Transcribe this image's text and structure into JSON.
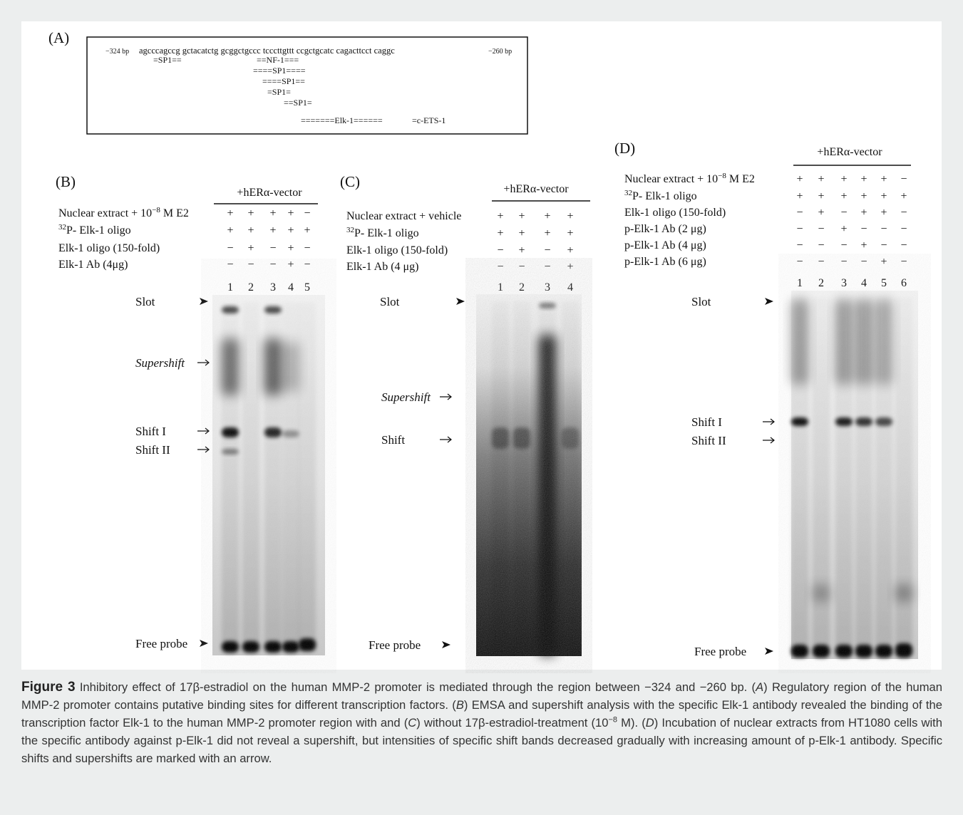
{
  "panels": {
    "a": {
      "label": "(A)",
      "sequence_start": "−324 bp",
      "sequence": "agcccagccg gctacatctg gcggctgccc tcccttgttt ccgctgcatc cagacttcct caggc",
      "sequence_end": "−260 bp",
      "sites": [
        "=SP1==",
        "==NF-1===",
        "====SP1====",
        "====SP1==",
        "=SP1=",
        "==SP1=",
        "=======Elk-1======",
        "=c-ETS-1"
      ]
    },
    "b": {
      "label": "(B)",
      "header": "+hERα-vector",
      "rows": [
        {
          "label": [
            "Nuclear extract + 10",
            [
              "−8"
            ],
            " M E2"
          ],
          "signs": [
            "+",
            "+",
            "+",
            "+",
            "−"
          ]
        },
        {
          "label": [
            [
              "32"
            ],
            "P- Elk-1 oligo"
          ],
          "signs": [
            "+",
            "+",
            "+",
            "+",
            "+"
          ]
        },
        {
          "label": [
            "Elk-1 oligo (150-fold)"
          ],
          "signs": [
            "−",
            "+",
            "−",
            "+",
            "−"
          ]
        },
        {
          "label": [
            "Elk-1 Ab (4μg)"
          ],
          "signs": [
            "−",
            "−",
            "−",
            "+",
            "−"
          ]
        }
      ],
      "lanes": [
        1,
        2,
        3,
        4,
        5
      ],
      "markers": [
        "Slot",
        "Supershift",
        "Shift I",
        "Shift II",
        "Free probe"
      ]
    },
    "c": {
      "label": "(C)",
      "header": "+hERα-vector",
      "rows": [
        {
          "label": [
            "Nuclear extract + vehicle"
          ],
          "signs": [
            "+",
            "+",
            "+",
            "+"
          ]
        },
        {
          "label": [
            [
              "32"
            ],
            "P- Elk-1 oligo"
          ],
          "signs": [
            "+",
            "+",
            "+",
            "+"
          ]
        },
        {
          "label": [
            "Elk-1 oligo (150-fold)"
          ],
          "signs": [
            "−",
            "+",
            "−",
            "+"
          ]
        },
        {
          "label": [
            "Elk-1 Ab (4 μg)"
          ],
          "signs": [
            "−",
            "−",
            "−",
            "+"
          ]
        }
      ],
      "lanes": [
        1,
        2,
        3,
        4
      ],
      "markers": [
        "Slot",
        "Supershift",
        "Shift",
        "Free probe"
      ]
    },
    "d": {
      "label": "(D)",
      "header": "+hERα-vector",
      "rows": [
        {
          "label": [
            "Nuclear extract + 10",
            [
              "−8"
            ],
            " M E2"
          ],
          "signs": [
            "+",
            "+",
            "+",
            "+",
            "+",
            "−"
          ]
        },
        {
          "label": [
            [
              "32"
            ],
            "P- Elk-1 oligo"
          ],
          "signs": [
            "+",
            "+",
            "+",
            "+",
            "+",
            "+"
          ]
        },
        {
          "label": [
            "Elk-1 oligo (150-fold)"
          ],
          "signs": [
            "−",
            "+",
            "−",
            "+",
            "+",
            "−"
          ]
        },
        {
          "label": [
            "p-Elk-1 Ab (2 μg)"
          ],
          "signs": [
            "−",
            "−",
            "+",
            "−",
            "−",
            "−"
          ]
        },
        {
          "label": [
            "p-Elk-1 Ab (4 μg)"
          ],
          "signs": [
            "−",
            "−",
            "−",
            "+",
            "−",
            "−"
          ]
        },
        {
          "label": [
            "p-Elk-1 Ab (6 μg)"
          ],
          "signs": [
            "−",
            "−",
            "−",
            "−",
            "+",
            "−"
          ]
        }
      ],
      "lanes": [
        1,
        2,
        3,
        4,
        5,
        6
      ],
      "markers": [
        "Slot",
        "Shift I",
        "Shift II",
        "Free probe"
      ]
    }
  },
  "caption": {
    "segments": [
      "Figure 3",
      " Inhibitory effect of 17β-estradiol on the human MMP-2 promoter is mediated through the region between −324 and −260 bp. (",
      "A",
      ") Regulatory region of the human MMP-2 promoter contains putative binding sites for different transcription factors. (",
      "B",
      ") EMSA and supershift analysis with the specific Elk-1 antibody revealed the binding of the transcription factor Elk-1 to the human MMP-2 promoter region with and (",
      "C",
      ") without 17β-estradiol-treatment (10",
      "−8",
      " M). (",
      "D",
      ") Incubation of nuclear extracts from HT1080 cells with the specific antibody against p-Elk-1 did not reveal a supershift, but intensities of specific shift bands decreased gradually with increasing amount of p-Elk-1 antibody. Specific shifts and supershifts are marked with an arrow."
    ]
  }
}
